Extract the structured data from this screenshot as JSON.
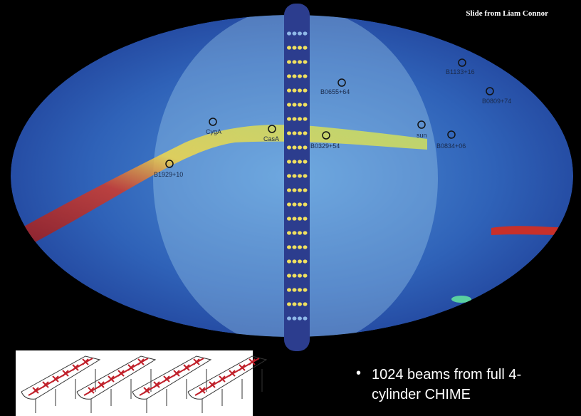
{
  "header": {
    "credit": "Slide from Liam Connor"
  },
  "sources": [
    {
      "label": "B0655+64"
    },
    {
      "label": "B1133+16"
    },
    {
      "label": "B0809+74"
    },
    {
      "label": "CygA"
    },
    {
      "label": "CasA"
    },
    {
      "label": "B0329+54"
    },
    {
      "label": "sun"
    },
    {
      "label": "B0834+06"
    },
    {
      "label": "B1929+10"
    }
  ],
  "bullet": {
    "lines": [
      "1024 beams from full 4-",
      "cylinder CHIME"
    ]
  }
}
